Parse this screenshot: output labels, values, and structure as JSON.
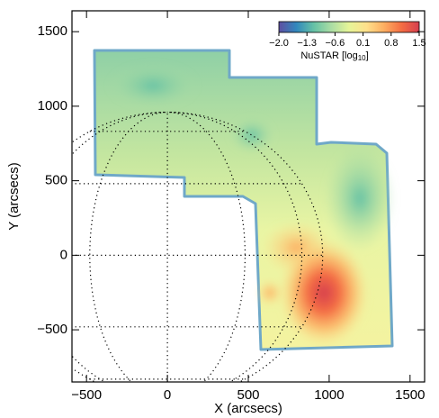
{
  "chart_data": {
    "type": "image",
    "x_label": "X (arcsecs)",
    "y_label": "Y (arcsecs)",
    "xlim": [
      -590,
      1590
    ],
    "ylim": [
      -850,
      1640
    ],
    "xticks": [
      {
        "value": -500,
        "label": "−500"
      },
      0,
      500,
      1000,
      1500
    ],
    "yticks": [
      {
        "value": -500,
        "label": "−500"
      },
      0,
      500,
      1000,
      1500
    ],
    "colorbar": {
      "label": "NuSTAR [log",
      "label_subscript": "10",
      "label_end": "]",
      "lim": [
        -2.0,
        1.5
      ],
      "ticks": [
        {
          "value": -2.0,
          "label": "−2.0"
        },
        {
          "value": -1.3,
          "label": "−1.3"
        },
        {
          "value": -0.6,
          "label": "−0.6"
        },
        0.1,
        0.8,
        1.5
      ],
      "colors": [
        "#5e4fa2",
        "#3288bd",
        "#66c2a5",
        "#abdda4",
        "#e6f598",
        "#fee08b",
        "#fdae61",
        "#f46d43",
        "#d53e4f"
      ]
    }
  }
}
